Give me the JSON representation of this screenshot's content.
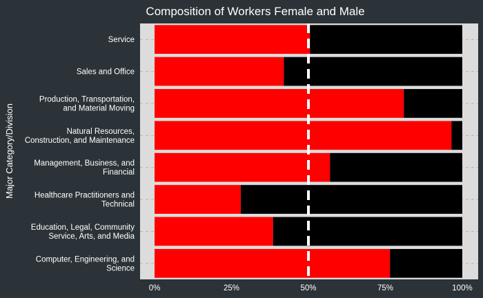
{
  "chart_data": {
    "type": "bar",
    "orientation": "horizontal",
    "stacked": true,
    "title": "Composition of Workers Female and Male",
    "ylabel": "Major Category/Division",
    "xlabel": "",
    "xlim": [
      0,
      1
    ],
    "x_ticks": [
      "0%",
      "25%",
      "50%",
      "75%",
      "100%"
    ],
    "categories": [
      "Service",
      "Sales and Office",
      "Production, Transportation, and Material Moving",
      "Natural Resources, Construction, and Maintenance",
      "Management, Business, and Financial",
      "Healthcare Practitioners and Technical",
      "Education, Legal, Community Service, Arts, and Media",
      "Computer, Engineering, and Science"
    ],
    "category_lines": [
      [
        "Service"
      ],
      [
        "Sales and Office"
      ],
      [
        "Production, Transportation,",
        "and Material Moving"
      ],
      [
        "Natural Resources,",
        "Construction, and Maintenance"
      ],
      [
        "Management, Business, and",
        "Financial"
      ],
      [
        "Healthcare Practitioners and",
        "Technical"
      ],
      [
        "Education, Legal, Community",
        "Service, Arts, and Media"
      ],
      [
        "Computer, Engineering, and",
        "Science"
      ]
    ],
    "series": [
      {
        "color": "#ff0000",
        "values": [
          0.505,
          0.42,
          0.81,
          0.965,
          0.57,
          0.28,
          0.385,
          0.765
        ]
      },
      {
        "color": "#000000",
        "values": [
          0.495,
          0.58,
          0.19,
          0.035,
          0.43,
          0.72,
          0.615,
          0.235
        ]
      }
    ],
    "reference_line": {
      "x": 0.5,
      "style": "dashed",
      "color": "#ffffff"
    },
    "panel_background": "#dcdcdc",
    "background": "#2b3338",
    "grid": true,
    "legend": "none"
  }
}
